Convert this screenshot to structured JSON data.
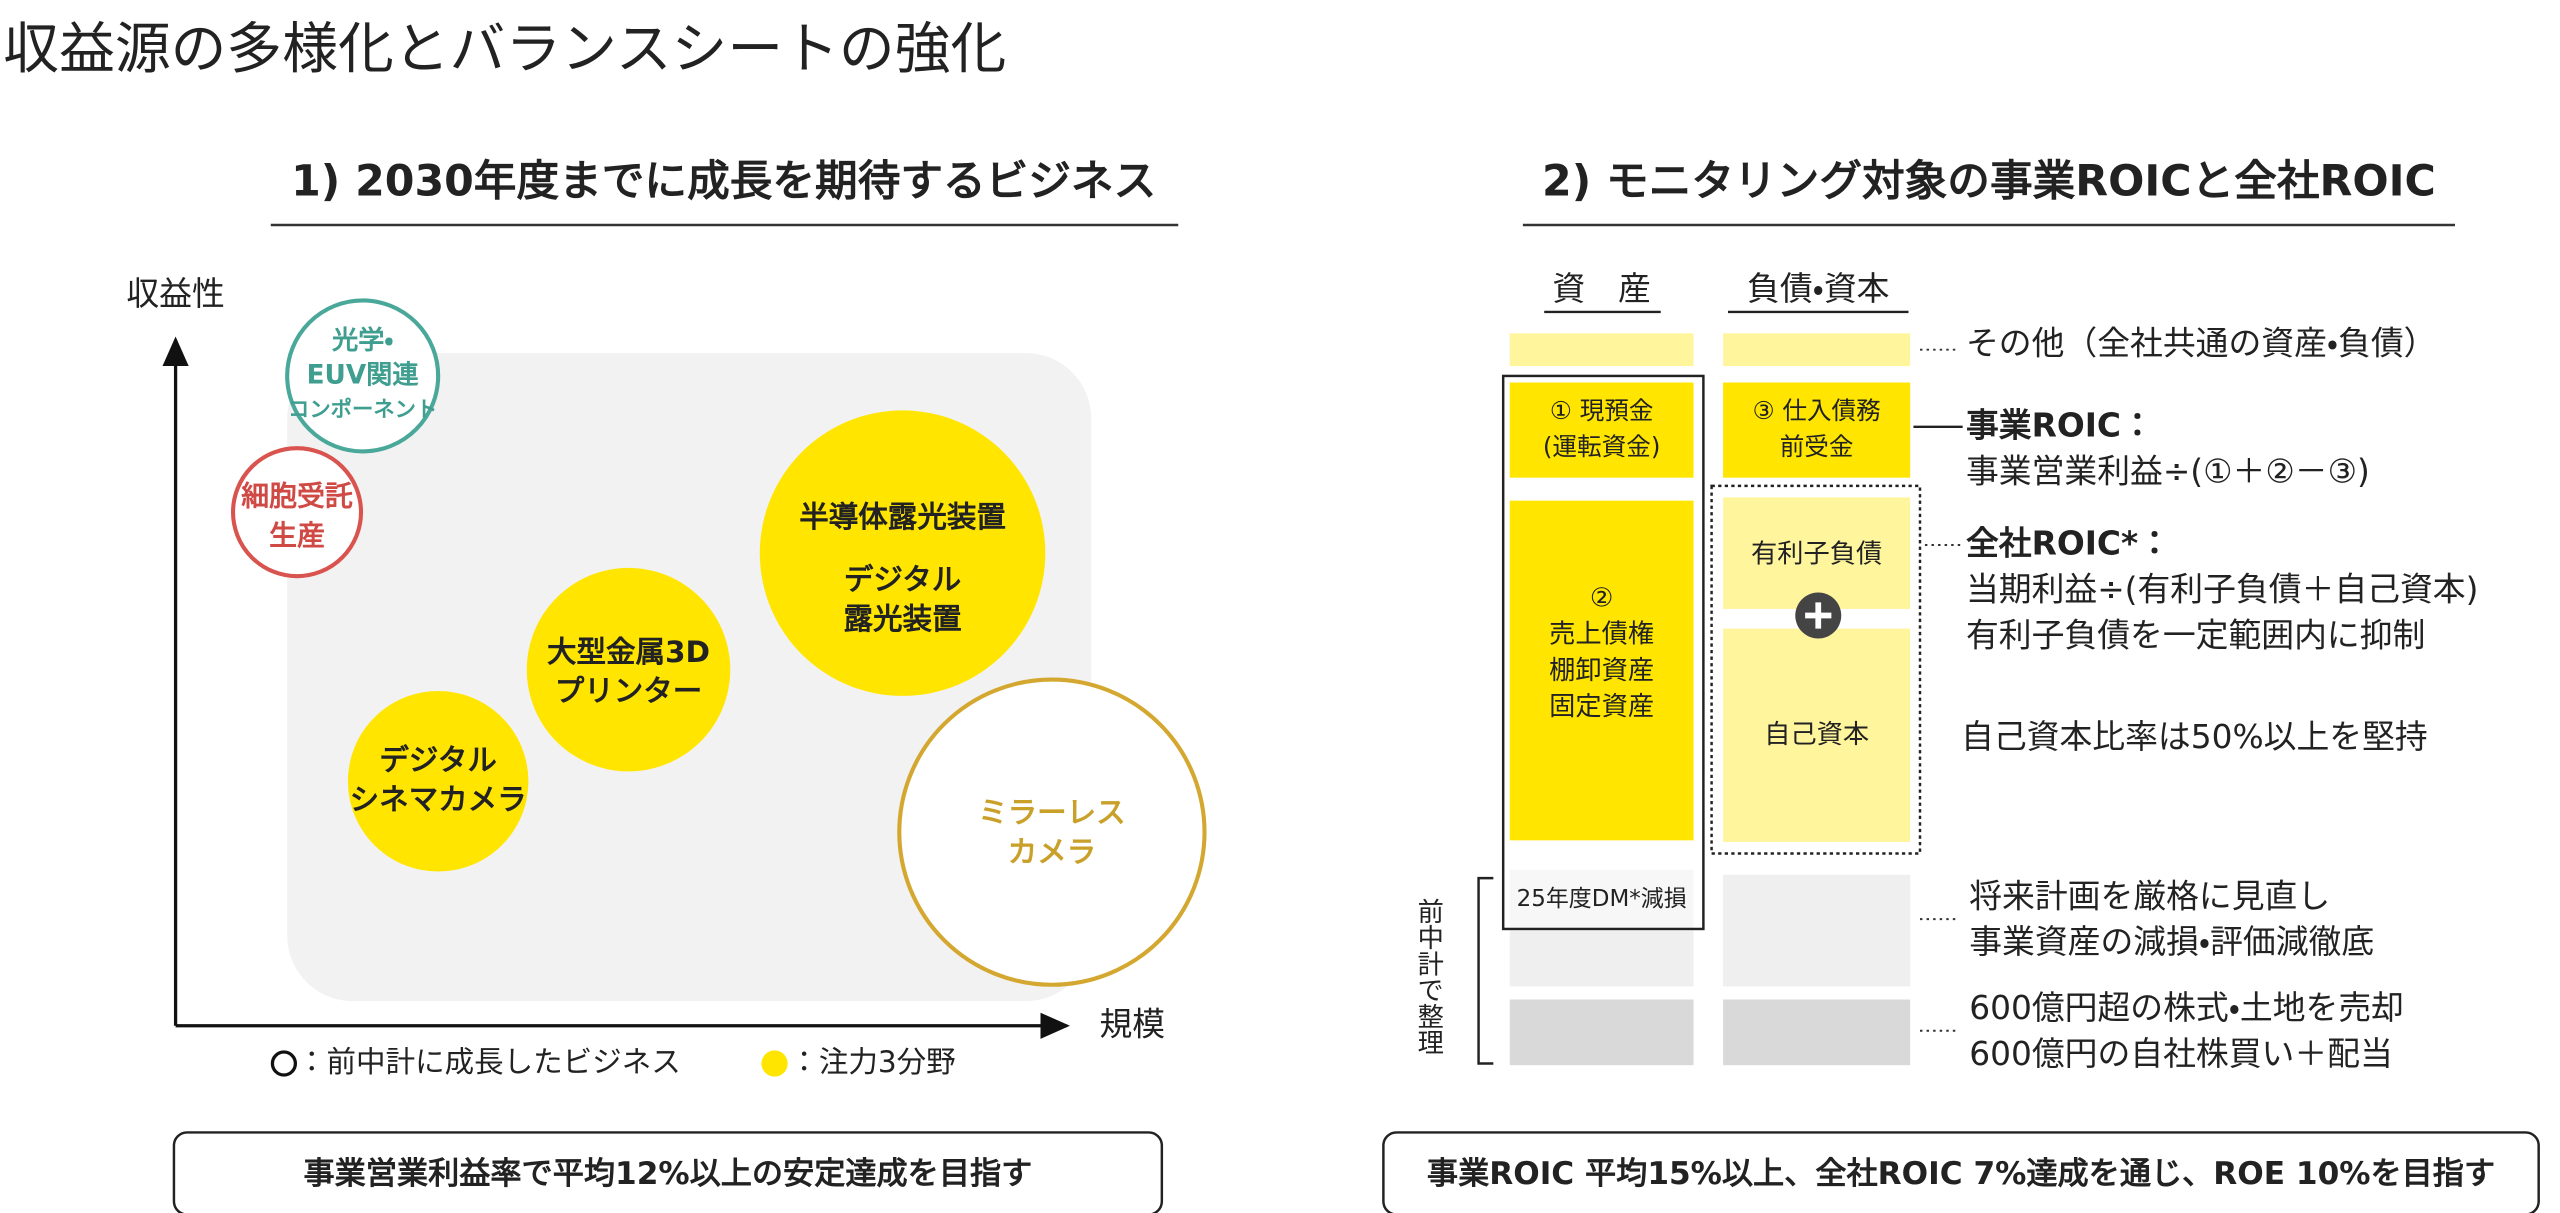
{
  "title": "収益源の多様化とバランスシートの強化",
  "left": {
    "heading": "1) 2030年度までに成長を期待するビジネス",
    "y_axis": "収益性",
    "x_axis": "規模",
    "bubbles": [
      {
        "lines": [
          "光学・",
          "EUV関連",
          "コンポーネント"
        ]
      },
      {
        "lines": [
          "細胞受託",
          "生産"
        ]
      },
      {
        "lines": [
          "半導体露光装置",
          "デジタル",
          "露光装置"
        ]
      },
      {
        "lines": [
          "大型金属3D",
          "プリンター"
        ]
      },
      {
        "lines": [
          "デジタル",
          "シネマカメラ"
        ]
      },
      {
        "lines": [
          "ミラーレス",
          "カメラ"
        ]
      }
    ],
    "legend": [
      "：前中計に成長したビジネス",
      "：注力3分野"
    ],
    "goal": "事業営業利益率で平均12%以上の安定達成を目指す"
  },
  "right": {
    "heading": "2) モニタリング対象の事業ROICと全社ROIC",
    "columns": [
      "資　産",
      "負債・資本"
    ],
    "blocks": {
      "cash": [
        "① 現預金",
        "(運転資金)"
      ],
      "payables": [
        "③ 仕入債務",
        "前受金"
      ],
      "assets": [
        "②",
        "売上債権",
        "棚卸資産",
        "固定資産"
      ],
      "debt": "有利子負債",
      "equity": "自己資本",
      "impairment": "25年度DM*減損"
    },
    "notes": {
      "other": "その他（全社共通の資産・負債）",
      "business_roic": [
        "事業ROIC：",
        "事業営業利益÷(①＋②－③)"
      ],
      "company_roic": [
        "全社ROIC*：",
        "当期利益÷(有利子負債＋自己資本)",
        "有利子負債を一定範囲内に抑制"
      ],
      "equity_ratio": "自己資本比率は50%以上を堅持",
      "review": [
        "将来計画を厳格に見直し",
        "事業資産の減損・評価減徹底"
      ],
      "capital": [
        "600億円超の株式・土地を売却",
        "600億円の自社株買い＋配当"
      ]
    },
    "bracket": "前中計で整理",
    "goal": "事業ROIC 平均15%以上、全社ROIC 7%達成を通じ、ROE 10%を目指す"
  }
}
